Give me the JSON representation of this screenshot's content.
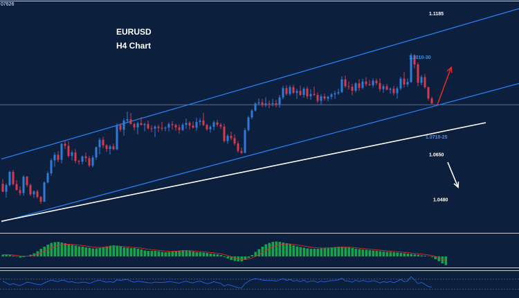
{
  "header": {
    "corner_text": "07626",
    "symbol": "EURUSD",
    "timeframe": "H4 Chart"
  },
  "colors": {
    "background": "#0c1f3d",
    "bull_candle": "#2f7bd8",
    "bear_candle": "#d83a4a",
    "channel_line": "#2b7cf0",
    "support_line": "#ffffff",
    "projection_up": "#e02a2a",
    "projection_down": "#ffffff",
    "histogram": "#16a34a",
    "signal_line": "#e02a2a",
    "oscillator": "#2563eb",
    "label_blue": "#3b93f7",
    "label_white": "#ffffff",
    "separator": "#c9ced6"
  },
  "chart_data": [
    {
      "type": "candlestick",
      "title": "EURUSD",
      "subtitle": "H4 Chart",
      "ylim": [
        1.0352,
        1.123
      ],
      "horizontal_level": 1.0838,
      "annotations": [
        {
          "label": "1.1185",
          "value": 1.1185,
          "color": "white"
        },
        {
          "label": "1.1010-30",
          "value": 1.102,
          "color": "blue"
        },
        {
          "label": "1.0710-25",
          "value": 1.0718,
          "color": "blue"
        },
        {
          "label": "1.0650",
          "value": 1.065,
          "color": "white"
        },
        {
          "label": "1.0480",
          "value": 1.048,
          "color": "white"
        }
      ],
      "trendlines": [
        {
          "name": "upper channel",
          "from": [
            0,
            1.0632
          ],
          "to": [
            150,
            1.1204
          ]
        },
        {
          "name": "lower channel",
          "from": [
            0,
            1.0394
          ],
          "to": [
            150,
            1.092
          ]
        },
        {
          "name": "support",
          "from": [
            0,
            1.0396
          ],
          "to": [
            140,
            1.077
          ]
        }
      ],
      "projections": [
        {
          "direction": "up",
          "from": [
            126,
            1.0838
          ],
          "to": [
            130,
            1.098
          ]
        },
        {
          "direction": "down",
          "from": [
            129,
            1.062
          ],
          "to": [
            132,
            1.0525
          ]
        }
      ],
      "ohlc": [
        [
          1.0538,
          1.0556,
          1.0507,
          1.0508
        ],
        [
          1.0508,
          1.054,
          1.0486,
          1.0533
        ],
        [
          1.0533,
          1.0587,
          1.0528,
          1.0583
        ],
        [
          1.0583,
          1.0591,
          1.0531,
          1.0537
        ],
        [
          1.0537,
          1.0552,
          1.0514,
          1.0514
        ],
        [
          1.0514,
          1.0528,
          1.0494,
          1.0503
        ],
        [
          1.0503,
          1.0571,
          1.0493,
          1.0565
        ],
        [
          1.0565,
          1.0568,
          1.0526,
          1.0533
        ],
        [
          1.0533,
          1.0539,
          1.0492,
          1.0498
        ],
        [
          1.0498,
          1.0513,
          1.0484,
          1.0509
        ],
        [
          1.0509,
          1.0515,
          1.0482,
          1.0488
        ],
        [
          1.0488,
          1.0492,
          1.0462,
          1.047
        ],
        [
          1.047,
          1.0547,
          1.047,
          1.0543
        ],
        [
          1.0543,
          1.0585,
          1.054,
          1.0578
        ],
        [
          1.0578,
          1.0634,
          1.0569,
          1.0627
        ],
        [
          1.0627,
          1.0657,
          1.0603,
          1.0648
        ],
        [
          1.0648,
          1.0662,
          1.062,
          1.0629
        ],
        [
          1.0629,
          1.0692,
          1.0616,
          1.069
        ],
        [
          1.069,
          1.0703,
          1.067,
          1.0682
        ],
        [
          1.0682,
          1.07,
          1.0638,
          1.0644
        ],
        [
          1.0644,
          1.0665,
          1.0627,
          1.0657
        ],
        [
          1.0657,
          1.0669,
          1.0616,
          1.0625
        ],
        [
          1.0625,
          1.0629,
          1.0611,
          1.0622
        ],
        [
          1.0622,
          1.0645,
          1.0612,
          1.0642
        ],
        [
          1.0642,
          1.0656,
          1.0621,
          1.0635
        ],
        [
          1.0635,
          1.0644,
          1.0601,
          1.0607
        ],
        [
          1.0607,
          1.0646,
          1.06,
          1.0638
        ],
        [
          1.0638,
          1.068,
          1.0629,
          1.0677
        ],
        [
          1.0677,
          1.0712,
          1.065,
          1.0705
        ],
        [
          1.0705,
          1.0716,
          1.0673,
          1.0684
        ],
        [
          1.0684,
          1.0688,
          1.0659,
          1.067
        ],
        [
          1.067,
          1.0686,
          1.0649,
          1.068
        ],
        [
          1.068,
          1.069,
          1.0666,
          1.0669
        ],
        [
          1.0669,
          1.0768,
          1.0666,
          1.076
        ],
        [
          1.076,
          1.0768,
          1.0735,
          1.0743
        ],
        [
          1.0743,
          1.0786,
          1.0721,
          1.0778
        ],
        [
          1.0778,
          1.0812,
          1.0769,
          1.0783
        ],
        [
          1.0783,
          1.0807,
          1.0763,
          1.0765
        ],
        [
          1.0765,
          1.0771,
          1.074,
          1.0752
        ],
        [
          1.0752,
          1.0774,
          1.0725,
          1.0768
        ],
        [
          1.0768,
          1.0791,
          1.076,
          1.0761
        ],
        [
          1.0761,
          1.0769,
          1.0737,
          1.0765
        ],
        [
          1.0765,
          1.0778,
          1.0744,
          1.0748
        ],
        [
          1.0748,
          1.076,
          1.0734,
          1.0747
        ],
        [
          1.0747,
          1.076,
          1.0715,
          1.0755
        ],
        [
          1.0755,
          1.0762,
          1.0734,
          1.075
        ],
        [
          1.075,
          1.0773,
          1.0739,
          1.0749
        ],
        [
          1.0749,
          1.0756,
          1.0737,
          1.0751
        ],
        [
          1.0751,
          1.0771,
          1.0737,
          1.0765
        ],
        [
          1.0765,
          1.0776,
          1.0743,
          1.0761
        ],
        [
          1.0761,
          1.0767,
          1.0739,
          1.0752
        ],
        [
          1.0752,
          1.0763,
          1.0729,
          1.0742
        ],
        [
          1.0742,
          1.0769,
          1.0738,
          1.0762
        ],
        [
          1.0762,
          1.0785,
          1.0746,
          1.0769
        ],
        [
          1.0769,
          1.0775,
          1.0744,
          1.0759
        ],
        [
          1.0759,
          1.0775,
          1.0748,
          1.0751
        ],
        [
          1.0751,
          1.0788,
          1.074,
          1.0773
        ],
        [
          1.0773,
          1.0787,
          1.0759,
          1.0778
        ],
        [
          1.0778,
          1.0807,
          1.0757,
          1.0761
        ],
        [
          1.0761,
          1.0766,
          1.0739,
          1.0745
        ],
        [
          1.0745,
          1.076,
          1.0733,
          1.0754
        ],
        [
          1.0754,
          1.0778,
          1.0741,
          1.0771
        ],
        [
          1.0771,
          1.0781,
          1.0754,
          1.0762
        ],
        [
          1.0762,
          1.077,
          1.0746,
          1.0755
        ],
        [
          1.0755,
          1.0766,
          1.0694,
          1.07
        ],
        [
          1.07,
          1.0727,
          1.069,
          1.072
        ],
        [
          1.072,
          1.0736,
          1.0703,
          1.0711
        ],
        [
          1.0711,
          1.0726,
          1.0684,
          1.0691
        ],
        [
          1.0691,
          1.07,
          1.0656,
          1.0663
        ],
        [
          1.0663,
          1.0676,
          1.0651,
          1.0655
        ],
        [
          1.0655,
          1.075,
          1.0655,
          1.0742
        ],
        [
          1.0742,
          1.0795,
          1.0737,
          1.079
        ],
        [
          1.079,
          1.0822,
          1.0783,
          1.0816
        ],
        [
          1.0816,
          1.0847,
          1.0812,
          1.0843
        ],
        [
          1.0843,
          1.0862,
          1.0836,
          1.0847
        ],
        [
          1.0847,
          1.086,
          1.0829,
          1.0836
        ],
        [
          1.0836,
          1.0866,
          1.0829,
          1.0843
        ],
        [
          1.0843,
          1.0854,
          1.0825,
          1.0841
        ],
        [
          1.0841,
          1.086,
          1.0832,
          1.0844
        ],
        [
          1.0844,
          1.0857,
          1.0829,
          1.0837
        ],
        [
          1.0837,
          1.0875,
          1.0827,
          1.0866
        ],
        [
          1.0866,
          1.091,
          1.0859,
          1.0901
        ],
        [
          1.0901,
          1.0912,
          1.0873,
          1.0879
        ],
        [
          1.0879,
          1.0912,
          1.0872,
          1.0905
        ],
        [
          1.0905,
          1.0914,
          1.0879,
          1.0883
        ],
        [
          1.0883,
          1.0898,
          1.086,
          1.089
        ],
        [
          1.089,
          1.0911,
          1.0872,
          1.0875
        ],
        [
          1.0875,
          1.0905,
          1.0864,
          1.0899
        ],
        [
          1.0899,
          1.0907,
          1.086,
          1.087
        ],
        [
          1.087,
          1.0897,
          1.0857,
          1.0879
        ],
        [
          1.0879,
          1.0907,
          1.0871,
          1.0875
        ],
        [
          1.0875,
          1.0885,
          1.0845,
          1.0853
        ],
        [
          1.0853,
          1.0878,
          1.084,
          1.087
        ],
        [
          1.087,
          1.088,
          1.0854,
          1.0861
        ],
        [
          1.0861,
          1.0872,
          1.0851,
          1.0868
        ],
        [
          1.0868,
          1.0883,
          1.0858,
          1.0877
        ],
        [
          1.0877,
          1.0891,
          1.086,
          1.0881
        ],
        [
          1.0881,
          1.0899,
          1.0875,
          1.0886
        ],
        [
          1.0886,
          1.0946,
          1.0882,
          1.0934
        ],
        [
          1.0934,
          1.0949,
          1.0902,
          1.0908
        ],
        [
          1.0908,
          1.0925,
          1.0896,
          1.0906
        ],
        [
          1.0906,
          1.0918,
          1.0874,
          1.0891
        ],
        [
          1.0891,
          1.0923,
          1.0884,
          1.0919
        ],
        [
          1.0919,
          1.0935,
          1.089,
          1.0902
        ],
        [
          1.0902,
          1.0937,
          1.0897,
          1.0926
        ],
        [
          1.0926,
          1.0942,
          1.0908,
          1.0916
        ],
        [
          1.0916,
          1.0932,
          1.0909,
          1.0912
        ],
        [
          1.0912,
          1.0938,
          1.0903,
          1.0929
        ],
        [
          1.0929,
          1.0937,
          1.0912,
          1.092
        ],
        [
          1.092,
          1.0938,
          1.0887,
          1.0897
        ],
        [
          1.0897,
          1.0916,
          1.0883,
          1.0908
        ],
        [
          1.0908,
          1.0917,
          1.0893,
          1.0895
        ],
        [
          1.0895,
          1.0903,
          1.088,
          1.0899
        ],
        [
          1.0899,
          1.091,
          1.0873,
          1.0882
        ],
        [
          1.0882,
          1.0907,
          1.0861,
          1.09
        ],
        [
          1.09,
          1.0944,
          1.0893,
          1.0937
        ],
        [
          1.0937,
          1.0962,
          1.0904,
          1.0915
        ],
        [
          1.0915,
          1.0938,
          1.0906,
          1.0924
        ],
        [
          1.0924,
          1.1033,
          1.0921,
          1.1026
        ],
        [
          1.1026,
          1.103,
          1.0976,
          1.0991
        ],
        [
          1.0991,
          1.0998,
          1.0908,
          1.0921
        ],
        [
          1.0921,
          1.0951,
          1.0912,
          1.0943
        ],
        [
          1.0943,
          1.0955,
          1.0899,
          1.0904
        ],
        [
          1.0904,
          1.0907,
          1.0854,
          1.0862
        ],
        [
          1.0862,
          1.0869,
          1.0841,
          1.0843
        ]
      ]
    },
    {
      "type": "histogram",
      "series": [
        {
          "values": [
            0.5,
            0.5,
            0.4,
            0.2,
            -0.1,
            -0.3,
            -0.2,
            0.1,
            0.5,
            0.9,
            1.5,
            2.2,
            2.8,
            3.4,
            3.9,
            4.1,
            4.2,
            4.0,
            3.8,
            3.6,
            3.3,
            3.1,
            2.9,
            2.8,
            2.6,
            2.5,
            2.3,
            2.3,
            2.4,
            2.7,
            2.9,
            3.1,
            3.2,
            3.1,
            2.9,
            2.6,
            2.5,
            2.4,
            2.4,
            2.2,
            2.0,
            1.7,
            1.6,
            1.6,
            1.6,
            1.5,
            1.3,
            1.2,
            1.3,
            1.4,
            1.6,
            1.7,
            1.8,
            1.8,
            1.6,
            1.4,
            1.2,
            1.2,
            1.1,
            1.0,
            0.8,
            0.7,
            0.6,
            0.4,
            -0.2,
            -0.6,
            -1.0,
            -1.3,
            -1.4,
            -1.4,
            -1.0,
            -0.4,
            0.4,
            1.3,
            2.1,
            2.8,
            3.5,
            3.9,
            4.2,
            4.3,
            4.2,
            4.0,
            3.8,
            3.5,
            3.2,
            2.9,
            2.7,
            2.5,
            2.3,
            2.2,
            2.2,
            2.2,
            2.3,
            2.4,
            2.5,
            2.6,
            2.7,
            2.8,
            2.8,
            2.7,
            2.6,
            2.4,
            2.2,
            2.1,
            2.0,
            1.9,
            1.8,
            1.7,
            1.6,
            1.5,
            1.4,
            1.3,
            1.3,
            1.2,
            1.1,
            1.0,
            0.9,
            0.8,
            0.7,
            0.6,
            0.5,
            0.3,
            0.2,
            0.1,
            -0.2,
            -0.8,
            -1.4,
            -2.0,
            -2.5
          ]
        }
      ]
    },
    {
      "type": "line",
      "series": [
        {
          "values": [
            62,
            55,
            48,
            52,
            47,
            45,
            50,
            58,
            56,
            52,
            49,
            47,
            55,
            61,
            66,
            63,
            60,
            66,
            64,
            58,
            60,
            56,
            55,
            58,
            57,
            53,
            58,
            63,
            66,
            61,
            58,
            60,
            57,
            68,
            64,
            68,
            69,
            62,
            58,
            62,
            60,
            58,
            56,
            55,
            58,
            57,
            57,
            58,
            60,
            59,
            56,
            54,
            59,
            62,
            57,
            55,
            60,
            62,
            57,
            52,
            55,
            60,
            56,
            53,
            42,
            48,
            45,
            40,
            36,
            35,
            52,
            62,
            68,
            72,
            70,
            66,
            65,
            64,
            65,
            62,
            67,
            72,
            65,
            69,
            62,
            65,
            60,
            66,
            58,
            62,
            63,
            57,
            62,
            59,
            62,
            64,
            65,
            67,
            74,
            63,
            62,
            58,
            66,
            60,
            65,
            61,
            60,
            64,
            61,
            55,
            60,
            57,
            61,
            56,
            61,
            69,
            60,
            63,
            80,
            67,
            52,
            57,
            49,
            40,
            38
          ]
        }
      ]
    }
  ]
}
